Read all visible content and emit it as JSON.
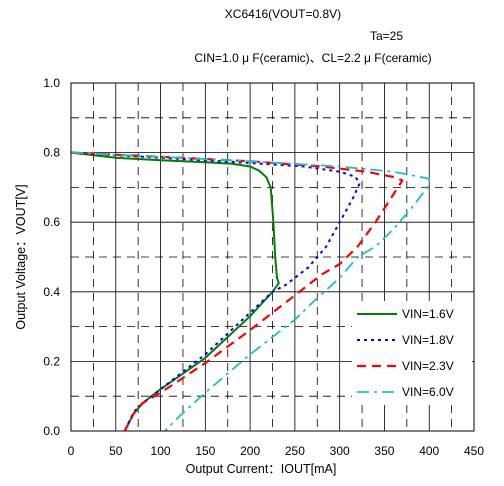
{
  "chart_data": {
    "type": "line",
    "title": "XC6416(VOUT=0.8V)",
    "subtitle_temp": "Ta=25",
    "subtitle_cond": "CIN=1.0 μ F(ceramic)、CL=2.2 μ F(ceramic)",
    "xlabel": "Output Current：IOUT[mA]",
    "ylabel": "Output Voltage：VOUT[V]",
    "xlim": [
      0,
      450
    ],
    "ylim": [
      0.0,
      1.0
    ],
    "x_ticks": [
      "0",
      "50",
      "100",
      "150",
      "200",
      "250",
      "300",
      "350",
      "400",
      "450"
    ],
    "y_ticks": [
      "0.0",
      "0.2",
      "0.4",
      "0.6",
      "0.8",
      "1.0"
    ],
    "grid": "on",
    "legend_position": "bottom-right",
    "series": [
      {
        "name": "VIN=1.6V",
        "color": "#008000",
        "dash": "solid",
        "points": [
          [
            0,
            0.8
          ],
          [
            50,
            0.785
          ],
          [
            100,
            0.778
          ],
          [
            150,
            0.772
          ],
          [
            180,
            0.768
          ],
          [
            200,
            0.76
          ],
          [
            210,
            0.748
          ],
          [
            218,
            0.73
          ],
          [
            223,
            0.7
          ],
          [
            226,
            0.6
          ],
          [
            228,
            0.5
          ],
          [
            230,
            0.44
          ],
          [
            232,
            0.425
          ],
          [
            225,
            0.4
          ],
          [
            200,
            0.33
          ],
          [
            150,
            0.21
          ],
          [
            100,
            0.12
          ],
          [
            90,
            0.1
          ],
          [
            80,
            0.08
          ],
          [
            70,
            0.05
          ],
          [
            60,
            0.0
          ]
        ]
      },
      {
        "name": "VIN=1.8V",
        "color": "#0000FF",
        "dash": "dot",
        "points": [
          [
            0,
            0.8
          ],
          [
            100,
            0.785
          ],
          [
            200,
            0.77
          ],
          [
            260,
            0.76
          ],
          [
            300,
            0.745
          ],
          [
            318,
            0.73
          ],
          [
            322,
            0.71
          ],
          [
            315,
            0.67
          ],
          [
            300,
            0.6
          ],
          [
            285,
            0.53
          ],
          [
            265,
            0.47
          ],
          [
            240,
            0.42
          ],
          [
            225,
            0.4
          ],
          [
            200,
            0.34
          ],
          [
            150,
            0.22
          ],
          [
            100,
            0.12
          ],
          [
            90,
            0.1
          ],
          [
            80,
            0.08
          ],
          [
            70,
            0.055
          ],
          [
            60,
            0.0
          ]
        ]
      },
      {
        "name": "VIN=2.3V",
        "color": "#FF0000",
        "dash": "dash",
        "points": [
          [
            0,
            0.8
          ],
          [
            100,
            0.788
          ],
          [
            200,
            0.775
          ],
          [
            280,
            0.76
          ],
          [
            330,
            0.745
          ],
          [
            360,
            0.73
          ],
          [
            370,
            0.72
          ],
          [
            360,
            0.68
          ],
          [
            340,
            0.6
          ],
          [
            320,
            0.53
          ],
          [
            300,
            0.48
          ],
          [
            280,
            0.45
          ],
          [
            250,
            0.39
          ],
          [
            200,
            0.29
          ],
          [
            150,
            0.195
          ],
          [
            100,
            0.11
          ],
          [
            80,
            0.08
          ],
          [
            70,
            0.05
          ],
          [
            60,
            0.0
          ]
        ]
      },
      {
        "name": "VIN=6.0V",
        "color": "#20C0C0",
        "dash": "dashdot",
        "points": [
          [
            0,
            0.8
          ],
          [
            100,
            0.788
          ],
          [
            200,
            0.775
          ],
          [
            300,
            0.76
          ],
          [
            360,
            0.745
          ],
          [
            400,
            0.725
          ],
          [
            398,
            0.7
          ],
          [
            380,
            0.64
          ],
          [
            360,
            0.58
          ],
          [
            340,
            0.53
          ],
          [
            320,
            0.5
          ],
          [
            300,
            0.44
          ],
          [
            270,
            0.37
          ],
          [
            250,
            0.32
          ],
          [
            200,
            0.22
          ],
          [
            150,
            0.11
          ],
          [
            120,
            0.04
          ],
          [
            105,
            0.0
          ]
        ]
      }
    ]
  }
}
